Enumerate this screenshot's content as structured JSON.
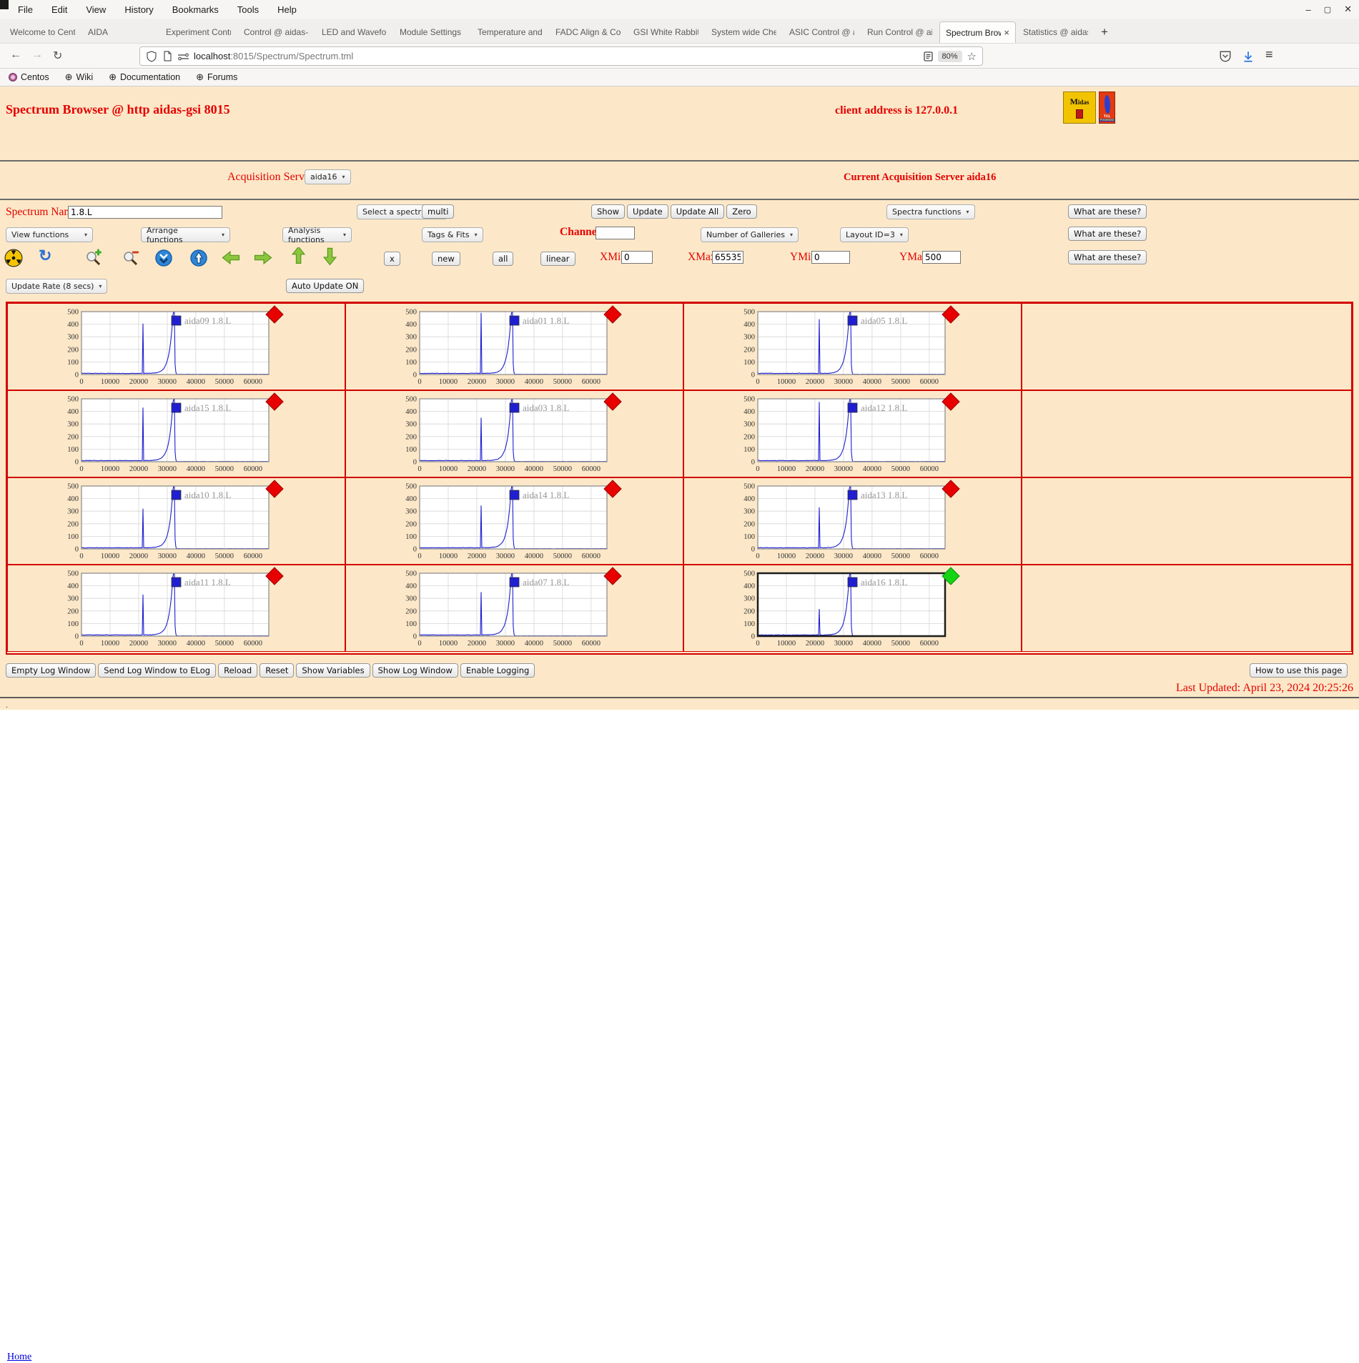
{
  "window": {
    "menu": [
      "File",
      "Edit",
      "View",
      "History",
      "Bookmarks",
      "Tools",
      "Help"
    ],
    "controls": {
      "minimize": "–",
      "maximize": "▢",
      "close": "✕"
    }
  },
  "tabs": {
    "items": [
      {
        "label": "Welcome to Cent",
        "active": false
      },
      {
        "label": "AIDA",
        "active": false
      },
      {
        "label": "Experiment Contr",
        "active": false
      },
      {
        "label": "Control @ aidas-",
        "active": false
      },
      {
        "label": "LED and Wavefor",
        "active": false
      },
      {
        "label": "Module Settings",
        "active": false
      },
      {
        "label": "Temperature and",
        "active": false
      },
      {
        "label": "FADC Align & Co",
        "active": false
      },
      {
        "label": "GSI White Rabbit",
        "active": false
      },
      {
        "label": "System wide Che",
        "active": false
      },
      {
        "label": "ASIC Control @ a",
        "active": false
      },
      {
        "label": "Run Control @ ai",
        "active": false
      },
      {
        "label": "Spectrum Brow",
        "active": true
      },
      {
        "label": "Statistics @ aidas",
        "active": false
      }
    ],
    "new_tab_label": "+"
  },
  "toolbar": {
    "url_host": "localhost",
    "url_rest": ":8015/Spectrum/Spectrum.tml",
    "zoom_level": "80%",
    "icons": [
      "shield-icon",
      "page-icon",
      "permissions-icon",
      "reader-mode-icon",
      "bookmark-star-icon",
      "pocket-icon",
      "download-icon",
      "menu-icon"
    ]
  },
  "bookmarks": {
    "items": [
      "Centos",
      "Wiki",
      "Documentation",
      "Forums"
    ]
  },
  "page": {
    "title": "Spectrum Browser @ http aidas-gsi 8015",
    "client_address": "client address is 127.0.0.1",
    "logos": [
      "midas-logo",
      "tcl-powered-logo"
    ],
    "acquisition_servers_label": "Acquisition Servers",
    "acquisition_server_value": "aida16",
    "current_server": "Current Acquisition Server aida16",
    "spectrum_name_label": "Spectrum Name:",
    "spectrum_name_value": "1.8.L",
    "select_spectrum_label": "Select a spectrum",
    "multi_label": "multi",
    "show_label": "Show",
    "update_label": "Update",
    "update_all_label": "Update All",
    "zero_label": "Zero",
    "spectra_functions_label": "Spectra functions",
    "what_are_these_label": "What are these?",
    "view_functions_label": "View functions",
    "arrange_functions_label": "Arrange functions",
    "analysis_functions_label": "Analysis functions",
    "tags_fits_label": "Tags & Fits",
    "channel_label": "Channel:",
    "channel_value": "",
    "galleries_label": "Number of Galleries",
    "layout_label": "Layout ID=3",
    "toolbar_icons": [
      "radiation-icon",
      "refresh-icon",
      "zoom-in-icon",
      "zoom-out-icon",
      "collapse-y-icon",
      "expand-y-icon",
      "pan-left-icon",
      "pan-right-icon",
      "pan-up-icon",
      "pan-down-icon"
    ],
    "x_button": "x",
    "new_button": "new",
    "all_button": "all",
    "linear_button": "linear",
    "xmin_label": "XMin",
    "xmin_value": "0",
    "xmax_label": "XMax",
    "xmax_value": "65535",
    "ymin_label": "YMin",
    "ymin_value": "0",
    "ymax_label": "YMax",
    "ymax_value": "500",
    "update_rate_label": "Update Rate (8 secs)",
    "auto_update_label": "Auto Update ON",
    "footer_buttons": [
      "Empty Log Window",
      "Send Log Window to ELog",
      "Reload",
      "Reset",
      "Show Variables",
      "Show Log Window",
      "Enable Logging"
    ],
    "how_to_label": "How to use this page",
    "last_updated": "Last Updated: April 23, 2024 20:25:26",
    "dot": ".",
    "home_label": "Home"
  },
  "chart_data": {
    "type": "line",
    "x_ticks": [
      0,
      10000,
      20000,
      30000,
      40000,
      50000,
      60000
    ],
    "y_ticks": [
      0,
      100,
      200,
      300,
      400,
      500
    ],
    "xlim": [
      0,
      65535
    ],
    "ylim": [
      0,
      500
    ],
    "grid": true,
    "legend_position": "top-right",
    "line_color": "#1f1fd0",
    "baseline_counts": 8,
    "spike_x": 21500,
    "main_peak_x": 32100,
    "main_peak_clipped_at": 500,
    "panels": [
      {
        "server": "aida09",
        "legend": "aida09 1.8.L",
        "spike_height": 405,
        "indicator": "#e80000",
        "selected": false
      },
      {
        "server": "aida01",
        "legend": "aida01 1.8.L",
        "spike_height": 490,
        "indicator": "#e80000",
        "selected": false
      },
      {
        "server": "aida05",
        "legend": "aida05 1.8.L",
        "spike_height": 440,
        "indicator": "#e80000",
        "selected": false
      },
      {
        "server": "aida15",
        "legend": "aida15 1.8.L",
        "spike_height": 430,
        "indicator": "#e80000",
        "selected": false
      },
      {
        "server": "aida03",
        "legend": "aida03 1.8.L",
        "spike_height": 350,
        "indicator": "#e80000",
        "selected": false
      },
      {
        "server": "aida12",
        "legend": "aida12 1.8.L",
        "spike_height": 475,
        "indicator": "#e80000",
        "selected": false
      },
      {
        "server": "aida10",
        "legend": "aida10 1.8.L",
        "spike_height": 320,
        "indicator": "#e80000",
        "selected": false
      },
      {
        "server": "aida14",
        "legend": "aida14 1.8.L",
        "spike_height": 345,
        "indicator": "#e80000",
        "selected": false
      },
      {
        "server": "aida13",
        "legend": "aida13 1.8.L",
        "spike_height": 330,
        "indicator": "#e80000",
        "selected": false
      },
      {
        "server": "aida11",
        "legend": "aida11 1.8.L",
        "spike_height": 330,
        "indicator": "#e80000",
        "selected": false
      },
      {
        "server": "aida07",
        "legend": "aida07 1.8.L",
        "spike_height": 350,
        "indicator": "#e80000",
        "selected": false
      },
      {
        "server": "aida16",
        "legend": "aida16 1.8.L",
        "spike_height": 215,
        "indicator": "#14d414",
        "selected": true
      }
    ]
  }
}
